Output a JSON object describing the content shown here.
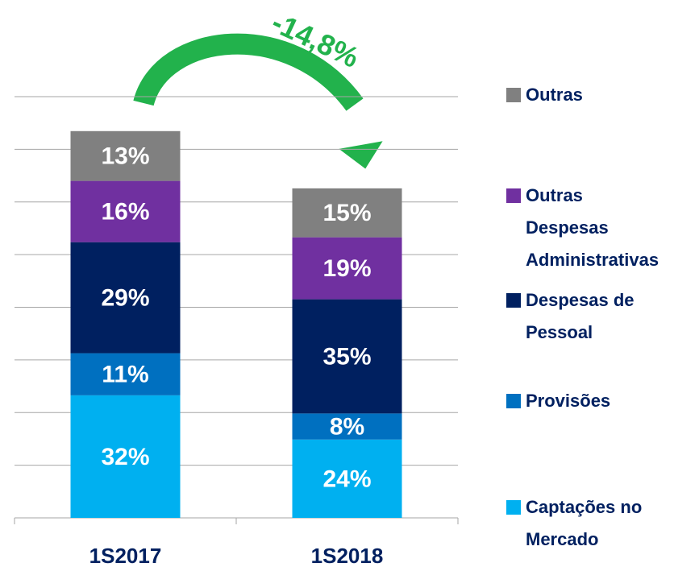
{
  "chart_data": {
    "type": "stacked_bar",
    "categories": [
      "1S2017",
      "1S2018"
    ],
    "series": [
      {
        "name": "Captações no Mercado",
        "color": "#00b0f0",
        "values": [
          32,
          24
        ],
        "value_labels": [
          "32%",
          "24%"
        ]
      },
      {
        "name": "Provisões",
        "color": "#0070c0",
        "values": [
          11,
          8
        ],
        "value_labels": [
          "11%",
          "8%"
        ]
      },
      {
        "name": "Despesas de Pessoal",
        "color": "#002060",
        "values": [
          29,
          35
        ],
        "value_labels": [
          "29%",
          "35%"
        ]
      },
      {
        "name": "Outras Despesas Administrativas",
        "color": "#7030a0",
        "values": [
          16,
          19
        ],
        "value_labels": [
          "16%",
          "19%"
        ]
      },
      {
        "name": "Outras",
        "color": "#808080",
        "values": [
          13,
          15
        ],
        "value_labels": [
          "13%",
          "15%"
        ]
      }
    ],
    "annotation": {
      "value": -14.8,
      "label": "-14,8%"
    },
    "ylim": [
      0,
      110
    ],
    "yticks": [
      0,
      13.75,
      27.5,
      41.25,
      55,
      68.75,
      82.5,
      96.25,
      110
    ],
    "grid": true,
    "legend": "right"
  }
}
